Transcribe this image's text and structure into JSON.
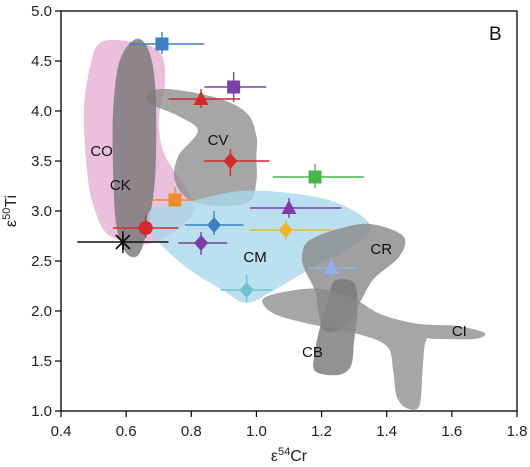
{
  "chart_data": {
    "type": "scatter",
    "panel_label": "B",
    "xlabel": {
      "base": "ε",
      "sup": "54",
      "rest": "Cr"
    },
    "ylabel": {
      "base": "ε",
      "sup": "50",
      "rest": "Ti"
    },
    "xlim": [
      0.4,
      1.8
    ],
    "ylim": [
      1.0,
      5.0
    ],
    "xticks": [
      "0.4",
      "0.6",
      "0.8",
      "1.0",
      "1.2",
      "1.4",
      "1.6",
      "1.8"
    ],
    "yticks": [
      "1.0",
      "1.5",
      "2.0",
      "2.5",
      "3.0",
      "3.5",
      "4.0",
      "4.5",
      "5.0"
    ],
    "regions": [
      {
        "label": "CO",
        "fill": "#e3a9d0",
        "opacity": 0.75,
        "outline": [
          [
            0.52,
            4.68
          ],
          [
            0.6,
            4.7
          ],
          [
            0.7,
            4.6
          ],
          [
            0.72,
            4.3
          ],
          [
            0.7,
            3.9
          ],
          [
            0.72,
            3.55
          ],
          [
            0.79,
            3.2
          ],
          [
            0.8,
            2.95
          ],
          [
            0.68,
            2.68
          ],
          [
            0.55,
            2.75
          ],
          [
            0.5,
            3.05
          ],
          [
            0.48,
            3.4
          ],
          [
            0.47,
            4.0
          ],
          [
            0.49,
            4.45
          ]
        ],
        "label_at": [
          0.49,
          3.55
        ]
      },
      {
        "label": "CV",
        "fill": "#888888",
        "opacity": 0.75,
        "outline": [
          [
            0.67,
            4.18
          ],
          [
            0.73,
            4.22
          ],
          [
            0.88,
            4.13
          ],
          [
            0.97,
            3.98
          ],
          [
            1.0,
            3.75
          ],
          [
            1.0,
            3.55
          ],
          [
            1.0,
            3.3
          ],
          [
            0.98,
            3.1
          ],
          [
            0.9,
            3.05
          ],
          [
            0.8,
            3.1
          ],
          [
            0.75,
            3.3
          ],
          [
            0.76,
            3.55
          ],
          [
            0.82,
            3.8
          ],
          [
            0.76,
            3.95
          ],
          [
            0.67,
            4.08
          ]
        ],
        "label_at": [
          0.85,
          3.66
        ]
      },
      {
        "label": "CK",
        "fill": "#777777",
        "opacity": 0.8,
        "outline": [
          [
            0.63,
            4.72
          ],
          [
            0.67,
            4.6
          ],
          [
            0.69,
            4.2
          ],
          [
            0.69,
            3.4
          ],
          [
            0.67,
            2.9
          ],
          [
            0.64,
            2.57
          ],
          [
            0.6,
            2.58
          ],
          [
            0.57,
            2.85
          ],
          [
            0.56,
            3.4
          ],
          [
            0.56,
            4.0
          ],
          [
            0.58,
            4.5
          ]
        ],
        "label_at": [
          0.55,
          3.21
        ]
      },
      {
        "label": "CM",
        "fill": "#a9d7ea",
        "opacity": 0.8,
        "outline": [
          [
            0.68,
            3.02
          ],
          [
            0.8,
            3.1
          ],
          [
            0.95,
            3.2
          ],
          [
            1.1,
            3.18
          ],
          [
            1.25,
            3.08
          ],
          [
            1.35,
            2.85
          ],
          [
            1.28,
            2.62
          ],
          [
            1.18,
            2.45
          ],
          [
            1.05,
            2.2
          ],
          [
            0.97,
            2.08
          ],
          [
            0.9,
            2.2
          ],
          [
            0.8,
            2.4
          ],
          [
            0.72,
            2.62
          ],
          [
            0.67,
            2.82
          ]
        ],
        "label_at": [
          0.96,
          2.49
        ]
      },
      {
        "label": "CR",
        "fill": "#888888",
        "opacity": 0.8,
        "outline": [
          [
            1.16,
            2.7
          ],
          [
            1.25,
            2.82
          ],
          [
            1.35,
            2.87
          ],
          [
            1.45,
            2.75
          ],
          [
            1.44,
            2.55
          ],
          [
            1.36,
            2.32
          ],
          [
            1.32,
            2.1
          ],
          [
            1.27,
            1.85
          ],
          [
            1.21,
            1.8
          ],
          [
            1.19,
            2.0
          ],
          [
            1.18,
            2.2
          ],
          [
            1.15,
            2.4
          ],
          [
            1.14,
            2.55
          ]
        ],
        "label_at": [
          1.35,
          2.57
        ]
      },
      {
        "label": "CB",
        "fill": "#777777",
        "opacity": 0.8,
        "outline": [
          [
            1.24,
            2.3
          ],
          [
            1.3,
            2.28
          ],
          [
            1.31,
            2.0
          ],
          [
            1.3,
            1.7
          ],
          [
            1.29,
            1.45
          ],
          [
            1.25,
            1.36
          ],
          [
            1.18,
            1.4
          ],
          [
            1.18,
            1.6
          ],
          [
            1.2,
            1.9
          ],
          [
            1.22,
            2.1
          ]
        ],
        "label_at": [
          1.14,
          1.54
        ]
      },
      {
        "label": "CI",
        "fill": "#888888",
        "opacity": 0.75,
        "outline": [
          [
            1.02,
            2.12
          ],
          [
            1.1,
            2.2
          ],
          [
            1.2,
            2.22
          ],
          [
            1.3,
            2.12
          ],
          [
            1.38,
            1.97
          ],
          [
            1.48,
            1.88
          ],
          [
            1.55,
            1.86
          ],
          [
            1.62,
            1.85
          ],
          [
            1.7,
            1.78
          ],
          [
            1.67,
            1.72
          ],
          [
            1.55,
            1.72
          ],
          [
            1.52,
            1.7
          ],
          [
            1.51,
            1.4
          ],
          [
            1.5,
            1.05
          ],
          [
            1.46,
            1.03
          ],
          [
            1.43,
            1.15
          ],
          [
            1.42,
            1.4
          ],
          [
            1.4,
            1.65
          ],
          [
            1.3,
            1.78
          ],
          [
            1.15,
            1.88
          ],
          [
            1.05,
            1.98
          ]
        ],
        "label_at": [
          1.6,
          1.75
        ]
      }
    ],
    "points": [
      {
        "x": 0.71,
        "y": 4.67,
        "xerr": [
          0.61,
          0.84
        ],
        "yerr": [
          4.57,
          4.79
        ],
        "color": "#3f7fc4",
        "marker": "square"
      },
      {
        "x": 0.93,
        "y": 4.24,
        "xerr": [
          0.84,
          1.03
        ],
        "yerr": [
          4.09,
          4.39
        ],
        "color": "#7a3fa8",
        "marker": "square"
      },
      {
        "x": 0.83,
        "y": 4.12,
        "xerr": [
          0.73,
          0.95
        ],
        "yerr": [
          4.03,
          4.22
        ],
        "color": "#d42a2a",
        "marker": "triangle"
      },
      {
        "x": 0.92,
        "y": 3.5,
        "xerr": [
          0.84,
          1.04
        ],
        "yerr": [
          3.35,
          3.62
        ],
        "color": "#d42a2a",
        "marker": "diamond"
      },
      {
        "x": 1.18,
        "y": 3.34,
        "xerr": [
          1.05,
          1.33
        ],
        "yerr": [
          3.23,
          3.47
        ],
        "color": "#47b848",
        "marker": "square"
      },
      {
        "x": 0.75,
        "y": 3.11,
        "xerr": [
          0.68,
          0.81
        ],
        "yerr": [
          3.04,
          3.24
        ],
        "color": "#f08c30",
        "marker": "square"
      },
      {
        "x": 1.1,
        "y": 3.03,
        "xerr": [
          0.98,
          1.26
        ],
        "yerr": [
          2.93,
          3.13
        ],
        "color": "#7a3fa8",
        "marker": "triangle"
      },
      {
        "x": 0.87,
        "y": 2.86,
        "xerr": [
          0.78,
          0.96
        ],
        "yerr": [
          2.76,
          3.0
        ],
        "color": "#3f7fc4",
        "marker": "diamond"
      },
      {
        "x": 0.66,
        "y": 2.83,
        "xerr": [
          0.56,
          0.76
        ],
        "yerr": [
          2.73,
          2.96
        ],
        "color": "#d42a2a",
        "marker": "circle"
      },
      {
        "x": 1.09,
        "y": 2.81,
        "xerr": [
          0.98,
          1.23
        ],
        "yerr": [
          2.71,
          2.91
        ],
        "color": "#f2b52b",
        "marker": "diamond"
      },
      {
        "x": 0.83,
        "y": 2.68,
        "xerr": [
          0.76,
          0.91
        ],
        "yerr": [
          2.56,
          2.79
        ],
        "color": "#7a3fa8",
        "marker": "diamond"
      },
      {
        "x": 0.59,
        "y": 2.69,
        "xerr": [
          0.45,
          0.73
        ],
        "yerr": [
          2.58,
          2.8
        ],
        "color": "#111111",
        "marker": "asterisk"
      },
      {
        "x": 1.23,
        "y": 2.43,
        "xerr": [
          1.16,
          1.31
        ],
        "yerr": [
          2.33,
          2.53
        ],
        "color": "#8fb1e8",
        "marker": "triangle"
      },
      {
        "x": 0.97,
        "y": 2.21,
        "xerr": [
          0.89,
          1.05
        ],
        "yerr": [
          2.09,
          2.36
        ],
        "color": "#6fc3d1",
        "marker": "diamond"
      }
    ]
  }
}
